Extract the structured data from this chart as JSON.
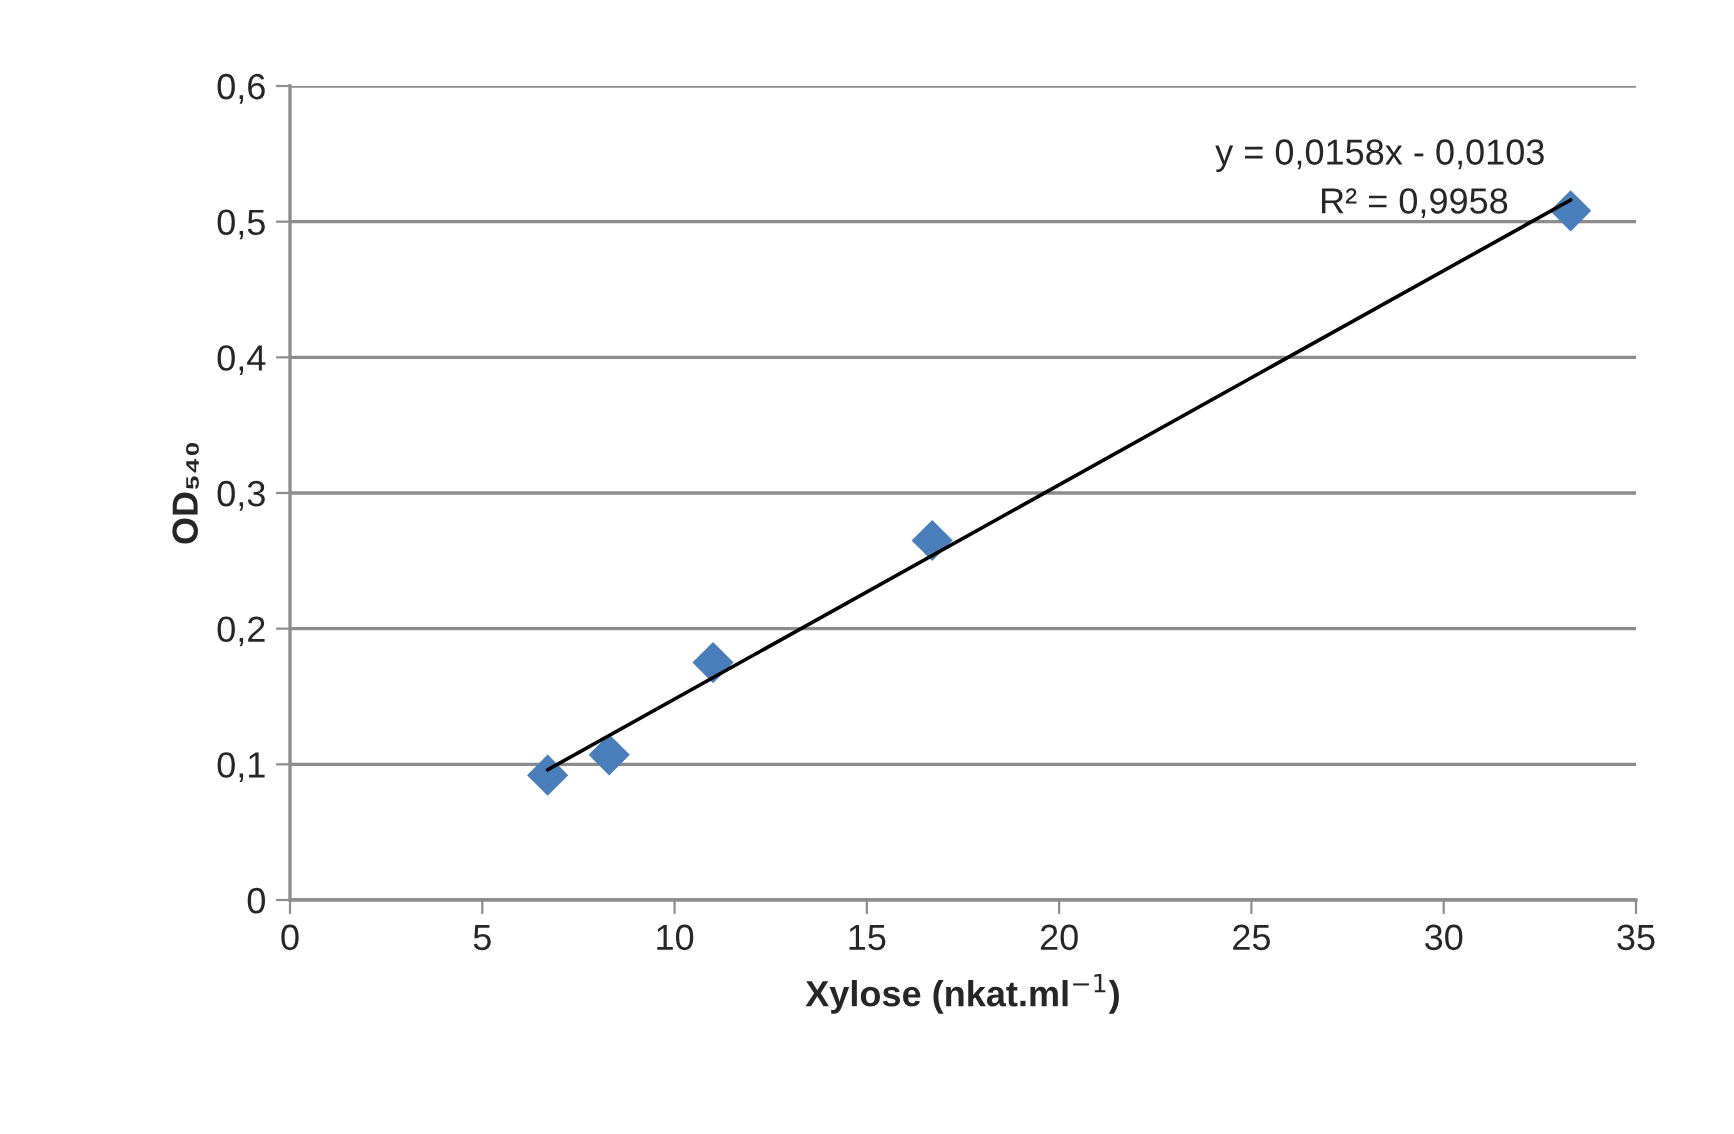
{
  "chart_data": {
    "type": "scatter",
    "xlabel": "Xylose (nkat.ml$^{−1}$)",
    "ylabel": "OD₅₄₀",
    "series": [
      {
        "color": "#4a7ebb",
        "marker": "diamond",
        "x": [
          6.7,
          8.3,
          11,
          16.7,
          33.3
        ],
        "values": [
          0.092,
          0.107,
          0.175,
          0.265,
          0.508
        ]
      },
      {
        "type": "line",
        "color": "#000000",
        "marker": "none",
        "line_style": "solid",
        "x": [
          6.7,
          33.3
        ],
        "values": [
          0.096,
          0.516
        ]
      }
    ],
    "xlim": [
      0,
      35
    ],
    "xticks": [
      0,
      5,
      10,
      15,
      20,
      25,
      30,
      35
    ],
    "ylim": [
      0,
      0.6
    ],
    "yticks": [
      0,
      {
        "value": 0.1,
        "label": "0,1"
      },
      {
        "value": 0.2,
        "label": "0,2"
      },
      {
        "value": 0.3,
        "label": "0,3"
      },
      {
        "value": 0.4,
        "label": "0,4"
      },
      {
        "value": 0.5,
        "label": "0,5"
      },
      {
        "value": 0.6,
        "label": "0,6"
      }
    ],
    "grid": "y",
    "annotations": [
      "y = 0,0158x - 0,0103",
      "R² = 0,9958"
    ]
  }
}
